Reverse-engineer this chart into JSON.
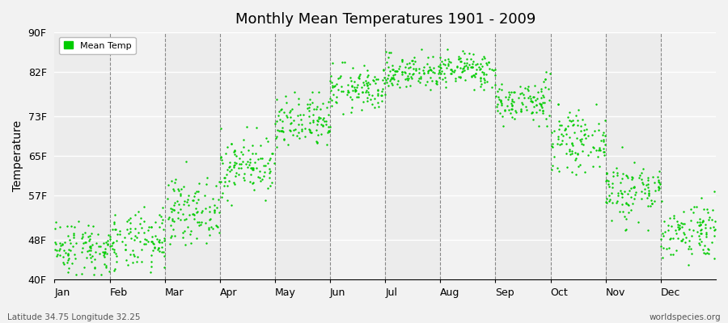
{
  "title": "Monthly Mean Temperatures 1901 - 2009",
  "ylabel": "Temperature",
  "ytick_labels": [
    "40F",
    "48F",
    "57F",
    "65F",
    "73F",
    "82F",
    "90F"
  ],
  "ytick_values": [
    40,
    48,
    57,
    65,
    73,
    82,
    90
  ],
  "ylim": [
    40,
    90
  ],
  "xlim": [
    0,
    12
  ],
  "xtick_positions": [
    0.0,
    1.0,
    2.0,
    3.0,
    4.0,
    5.0,
    6.0,
    7.0,
    8.0,
    9.0,
    10.0,
    11.0
  ],
  "xtick_labels": [
    "Jan",
    "Feb",
    "Mar",
    "Apr",
    "May",
    "Jun",
    "Jul",
    "Aug",
    "Sep",
    "Oct",
    "Nov",
    "Dec"
  ],
  "vline_positions": [
    1.0,
    2.0,
    3.0,
    4.0,
    5.0,
    6.0,
    7.0,
    8.0,
    9.0,
    10.0,
    11.0
  ],
  "dot_color": "#00cc00",
  "dot_size": 3,
  "background_color": "#f2f2f2",
  "plot_bg_color": "#f2f2f2",
  "legend_label": "Mean Temp",
  "subtitle_left": "Latitude 34.75 Longitude 32.25",
  "subtitle_right": "worldspecies.org",
  "monthly_means": [
    46.5,
    47.5,
    54.0,
    63.0,
    71.5,
    78.5,
    82.0,
    82.5,
    76.0,
    68.0,
    58.0,
    50.0
  ],
  "monthly_stds": [
    2.8,
    3.0,
    3.2,
    3.0,
    2.8,
    2.2,
    1.8,
    1.8,
    2.2,
    2.8,
    3.2,
    3.0
  ],
  "monthly_mins": [
    41.0,
    41.5,
    47.0,
    55.0,
    64.0,
    73.0,
    78.0,
    78.5,
    71.0,
    61.0,
    50.0,
    43.0
  ],
  "monthly_maxs": [
    55.0,
    57.0,
    65.5,
    71.0,
    78.0,
    84.0,
    87.5,
    87.5,
    82.0,
    75.5,
    69.0,
    58.0
  ],
  "n_years": 109
}
